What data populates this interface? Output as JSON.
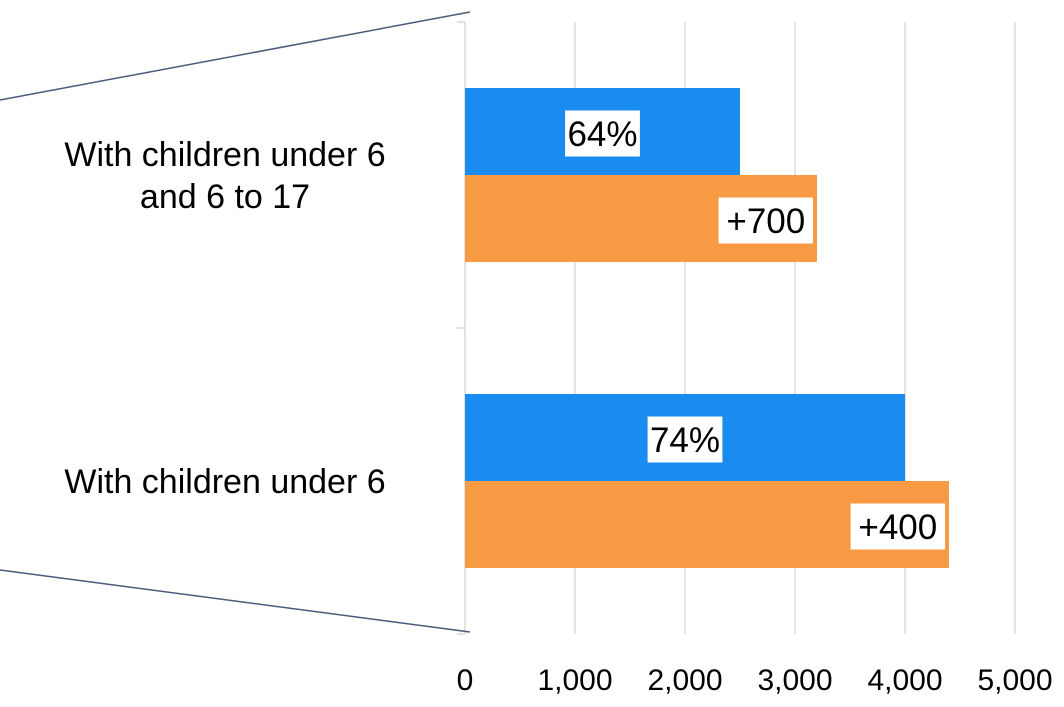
{
  "chart_data": {
    "type": "bar",
    "orientation": "horizontal",
    "categories": [
      [
        "With children under 6",
        "and 6 to 17"
      ],
      [
        "With children under 6"
      ]
    ],
    "series": [
      {
        "color": "#1a8cf0",
        "values": [
          2500,
          4000
        ],
        "data_labels": [
          "64%",
          "74%"
        ]
      },
      {
        "color": "#f79a43",
        "values": [
          3200,
          4400
        ],
        "data_labels": [
          "+700",
          "+400"
        ]
      }
    ],
    "xlim": [
      0,
      5000
    ],
    "xticks": [
      0,
      1000,
      2000,
      3000,
      4000,
      5000
    ],
    "xtick_labels": [
      "0",
      "1,000",
      "2,000",
      "3,000",
      "4,000",
      "5,000"
    ],
    "grid": "vertical",
    "legend": false
  }
}
